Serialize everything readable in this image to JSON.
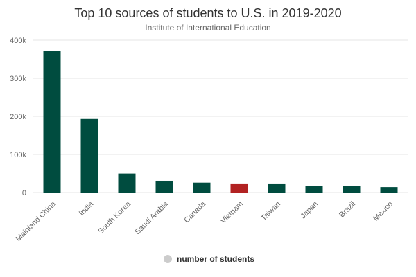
{
  "chart_data": {
    "type": "bar",
    "title": "Top 10 sources of students to U.S. in 2019-2020",
    "subtitle": "Institute of International Education",
    "categories": [
      "Mainland China",
      "India",
      "South Korea",
      "Saudi Arabia",
      "Canada",
      "Vietnam",
      "Taiwan",
      "Japan",
      "Brazil",
      "Mexico"
    ],
    "series": [
      {
        "name": "number of students",
        "values": [
          372532,
          193124,
          49809,
          30957,
          25992,
          23777,
          23724,
          17554,
          16671,
          14348
        ]
      }
    ],
    "highlight_category": "Vietnam",
    "colors": {
      "bar": "#004c3f",
      "highlight": "#b22222",
      "legend_marker": "#cccccc",
      "grid": "#e6e6e6"
    },
    "y_ticks": [
      "0",
      "100k",
      "200k",
      "300k",
      "400k"
    ],
    "ylim": [
      0,
      400000
    ],
    "grid": true,
    "legend_position": "bottom-center"
  }
}
